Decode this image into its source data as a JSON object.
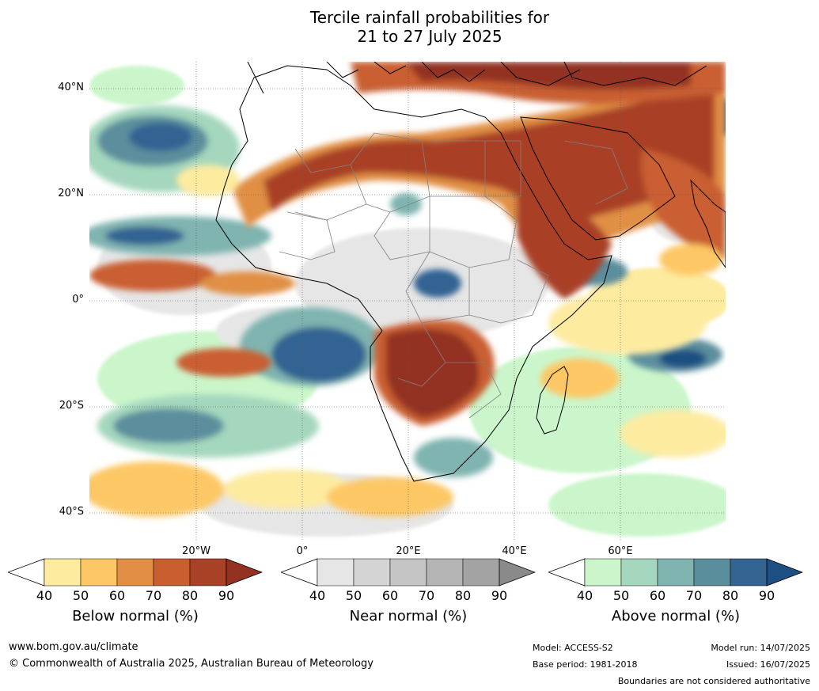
{
  "title": {
    "line1": "Tercile rainfall probabilities for",
    "line2": "21 to 27 July 2025"
  },
  "map": {
    "region": "Africa and surrounding oceans",
    "lat_labels": [
      "40°N",
      "20°N",
      "0°",
      "20°S",
      "40°S"
    ],
    "lon_labels": [
      "20°W",
      "0°",
      "20°E",
      "40°E",
      "60°E"
    ],
    "colors": {
      "below": [
        "#fdeba0",
        "#fdc765",
        "#e08f45",
        "#c95e30",
        "#a94127",
        "#933221"
      ],
      "near": [
        "#e6e6e6",
        "#d4d4d4",
        "#c5c5c5",
        "#b5b5b5",
        "#a3a3a3",
        "#8a8a8a"
      ],
      "above": [
        "#cbf6cb",
        "#a4d7bd",
        "#7fb4b0",
        "#5b8e9d",
        "#336492",
        "#1e4f82"
      ],
      "ocean_background": "#ffffff",
      "coastline": "#000000",
      "borders": "#808080"
    }
  },
  "legends": [
    {
      "label": "Below normal (%)",
      "ticks": [
        "40",
        "50",
        "60",
        "70",
        "80",
        "90"
      ]
    },
    {
      "label": "Near normal (%)",
      "ticks": [
        "40",
        "50",
        "60",
        "70",
        "80",
        "90"
      ]
    },
    {
      "label": "Above normal (%)",
      "ticks": [
        "40",
        "50",
        "60",
        "70",
        "80",
        "90"
      ]
    }
  ],
  "footer": {
    "website": "www.bom.gov.au/climate",
    "copyright": "© Commonwealth of Australia 2025, Australian Bureau of Meteorology",
    "model": "Model: ACCESS-S2",
    "base_period": "Base period: 1981-2018",
    "model_run": "Model run: 14/07/2025",
    "issued": "Issued: 16/07/2025",
    "disclaimer": "Boundaries are not considered authoritative"
  }
}
